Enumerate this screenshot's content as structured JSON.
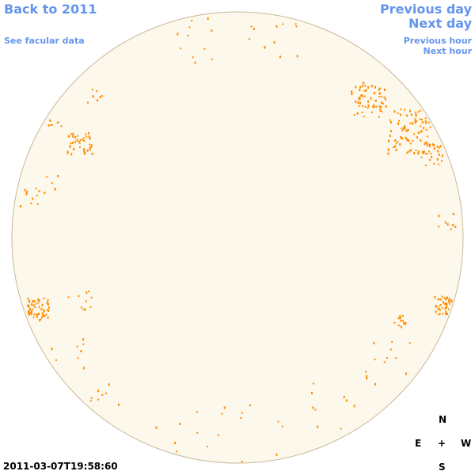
{
  "nav": {
    "back": "Back to 2011",
    "facular": "See facular data",
    "previous_day": "Previous day",
    "next_day": "Next day",
    "previous_hour": "Previous hour",
    "next_hour": "Next hour"
  },
  "compass": {
    "north": "N",
    "east": "E",
    "center": "+",
    "west": "W",
    "south": "S"
  },
  "timestamp": "2011-03-07T19:58:60"
}
